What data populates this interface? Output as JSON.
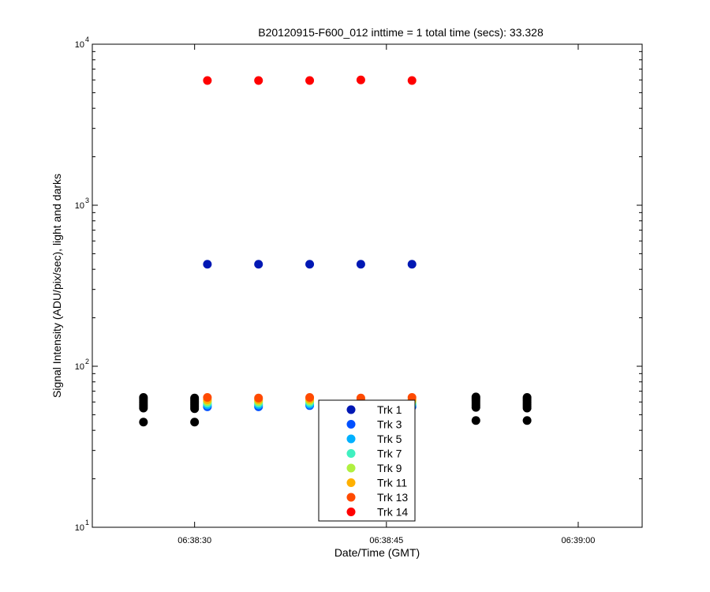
{
  "chart_data": {
    "type": "scatter",
    "title": "B20120915-F600_012 inttime = 1 total time (secs): 33.328",
    "xlabel": "Date/Time (GMT)",
    "ylabel": "Signal Intensity (ADU/pix/sec), light and darks",
    "x_scale": "time",
    "x_range": [
      "06:38:22",
      "06:39:05"
    ],
    "x_ticks": [
      "06:38:30",
      "06:38:45",
      "06:39:00"
    ],
    "y_scale": "log",
    "y_range": [
      10,
      10000
    ],
    "y_ticks": [
      {
        "base": "10",
        "exp": "1",
        "value": 10
      },
      {
        "base": "10",
        "exp": "2",
        "value": 100
      },
      {
        "base": "10",
        "exp": "3",
        "value": 1000
      },
      {
        "base": "10",
        "exp": "4",
        "value": 10000
      }
    ],
    "grid": false,
    "legend_position": "bottom-center",
    "series": [
      {
        "name": "Trk 1",
        "color": "#0018b4",
        "points": [
          {
            "x": "06:38:31",
            "y": 430
          },
          {
            "x": "06:38:35",
            "y": 430
          },
          {
            "x": "06:38:39",
            "y": 430
          },
          {
            "x": "06:38:43",
            "y": 430
          },
          {
            "x": "06:38:47",
            "y": 430
          }
        ]
      },
      {
        "name": "Trk 3",
        "color": "#0050ff",
        "points": [
          {
            "x": "06:38:31",
            "y": 56
          },
          {
            "x": "06:38:35",
            "y": 56
          },
          {
            "x": "06:38:39",
            "y": 57
          },
          {
            "x": "06:38:43",
            "y": 57
          },
          {
            "x": "06:38:47",
            "y": 56
          }
        ]
      },
      {
        "name": "Trk 5",
        "color": "#00b0ff",
        "points": [
          {
            "x": "06:38:31",
            "y": 57.5
          },
          {
            "x": "06:38:35",
            "y": 57.5
          },
          {
            "x": "06:38:39",
            "y": 58
          },
          {
            "x": "06:38:43",
            "y": 58
          },
          {
            "x": "06:38:47",
            "y": 57.5
          }
        ]
      },
      {
        "name": "Trk 7",
        "color": "#40f0c0",
        "points": [
          {
            "x": "06:38:31",
            "y": 59
          },
          {
            "x": "06:38:35",
            "y": 59
          },
          {
            "x": "06:38:39",
            "y": 59.5
          },
          {
            "x": "06:38:43",
            "y": 59.5
          },
          {
            "x": "06:38:47",
            "y": 59
          }
        ]
      },
      {
        "name": "Trk 9",
        "color": "#b0f040",
        "points": [
          {
            "x": "06:38:31",
            "y": 60.5
          },
          {
            "x": "06:38:35",
            "y": 60.5
          },
          {
            "x": "06:38:39",
            "y": 61
          },
          {
            "x": "06:38:43",
            "y": 61
          },
          {
            "x": "06:38:47",
            "y": 60.5
          }
        ]
      },
      {
        "name": "Trk 11",
        "color": "#ffb000",
        "points": [
          {
            "x": "06:38:31",
            "y": 62
          },
          {
            "x": "06:38:35",
            "y": 62
          },
          {
            "x": "06:38:39",
            "y": 62.5
          },
          {
            "x": "06:38:43",
            "y": 62.5
          },
          {
            "x": "06:38:47",
            "y": 62
          }
        ]
      },
      {
        "name": "Trk 13",
        "color": "#ff4a00",
        "points": [
          {
            "x": "06:38:31",
            "y": 64
          },
          {
            "x": "06:38:35",
            "y": 63.5
          },
          {
            "x": "06:38:39",
            "y": 64
          },
          {
            "x": "06:38:43",
            "y": 63.5
          },
          {
            "x": "06:38:47",
            "y": 64
          }
        ]
      },
      {
        "name": "Trk 14",
        "color": "#ff0000",
        "points": [
          {
            "x": "06:38:31",
            "y": 5950
          },
          {
            "x": "06:38:35",
            "y": 5950
          },
          {
            "x": "06:38:39",
            "y": 5950
          },
          {
            "x": "06:38:43",
            "y": 6000
          },
          {
            "x": "06:38:47",
            "y": 5950
          }
        ]
      },
      {
        "name": "",
        "color": "#000000",
        "points": [
          {
            "x": "06:38:26",
            "y": 45
          },
          {
            "x": "06:38:26",
            "y": 55
          },
          {
            "x": "06:38:26",
            "y": 56.5
          },
          {
            "x": "06:38:26",
            "y": 58
          },
          {
            "x": "06:38:26",
            "y": 59.5
          },
          {
            "x": "06:38:26",
            "y": 61
          },
          {
            "x": "06:38:26",
            "y": 62.5
          },
          {
            "x": "06:38:26",
            "y": 64
          },
          {
            "x": "06:38:30",
            "y": 45
          },
          {
            "x": "06:38:30",
            "y": 54.5
          },
          {
            "x": "06:38:30",
            "y": 56
          },
          {
            "x": "06:38:30",
            "y": 57.5
          },
          {
            "x": "06:38:30",
            "y": 59
          },
          {
            "x": "06:38:30",
            "y": 60.5
          },
          {
            "x": "06:38:30",
            "y": 62
          },
          {
            "x": "06:38:30",
            "y": 63.5
          },
          {
            "x": "06:38:52",
            "y": 46
          },
          {
            "x": "06:38:52",
            "y": 55.5
          },
          {
            "x": "06:38:52",
            "y": 57
          },
          {
            "x": "06:38:52",
            "y": 58.5
          },
          {
            "x": "06:38:52",
            "y": 60
          },
          {
            "x": "06:38:52",
            "y": 61.5
          },
          {
            "x": "06:38:52",
            "y": 63
          },
          {
            "x": "06:38:52",
            "y": 64.5
          },
          {
            "x": "06:38:56",
            "y": 46
          },
          {
            "x": "06:38:56",
            "y": 55
          },
          {
            "x": "06:38:56",
            "y": 56.5
          },
          {
            "x": "06:38:56",
            "y": 58
          },
          {
            "x": "06:38:56",
            "y": 59.5
          },
          {
            "x": "06:38:56",
            "y": 61
          },
          {
            "x": "06:38:56",
            "y": 62.5
          },
          {
            "x": "06:38:56",
            "y": 64
          }
        ]
      }
    ]
  }
}
